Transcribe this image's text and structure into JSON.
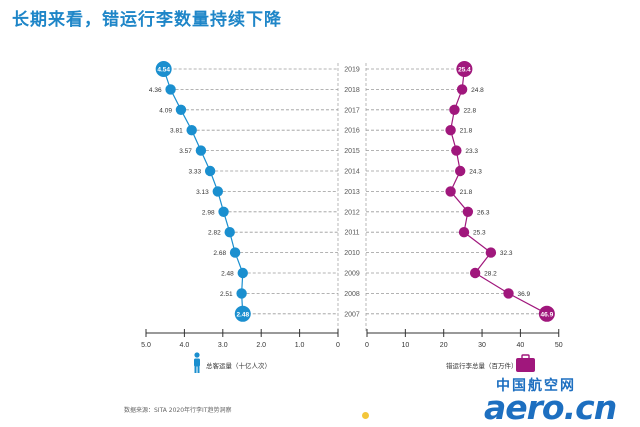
{
  "title": "长期来看，错运行李数量持续下降",
  "footnote": "数据来源：SITA 2020年行李IT趋势洞察",
  "watermark": {
    "cn": "中国航空网",
    "en": "aero.cn"
  },
  "colors": {
    "passenger": "#1a8fcf",
    "baggage": "#a0177c",
    "grid": "#9a9a9a",
    "title": "#1f86c8"
  },
  "chart_data": {
    "type": "line",
    "years": [
      "2019",
      "2018",
      "2017",
      "2016",
      "2015",
      "2014",
      "2013",
      "2012",
      "2011",
      "2010",
      "2009",
      "2008",
      "2007"
    ],
    "series": [
      {
        "name": "总客运量（十亿人次）",
        "icon": "person-icon",
        "values": [
          4.54,
          4.36,
          4.09,
          3.81,
          3.57,
          3.33,
          3.13,
          2.98,
          2.82,
          2.68,
          2.48,
          2.51,
          2.48
        ],
        "labels": [
          "4.54",
          "4.36",
          "4.09",
          "3.81",
          "3.57",
          "3.33",
          "3.13",
          "2.98",
          "2.82",
          "2.68",
          "2.48",
          "2.51",
          "2.48"
        ],
        "axis_ticks": [
          5.0,
          4.0,
          3.0,
          2.0,
          1.0,
          0
        ],
        "axis_tick_labels": [
          "5.0",
          "4.0",
          "3.0",
          "2.0",
          "1.0",
          "0"
        ]
      },
      {
        "name": "错运行李总量（百万件）",
        "icon": "suitcase-icon",
        "values": [
          25.4,
          24.8,
          22.8,
          21.8,
          23.3,
          24.3,
          21.8,
          26.3,
          25.3,
          32.3,
          28.2,
          36.9,
          46.9
        ],
        "labels": [
          "25.4",
          "24.8",
          "22.8",
          "21.8",
          "23.3",
          "24.3",
          "21.8",
          "26.3",
          "25.3",
          "32.3",
          "28.2",
          "36.9",
          "46.9"
        ],
        "axis_ticks": [
          0,
          10,
          20,
          30,
          40,
          50
        ],
        "axis_tick_labels": [
          "0",
          "10",
          "20",
          "30",
          "40",
          "50"
        ]
      }
    ]
  }
}
